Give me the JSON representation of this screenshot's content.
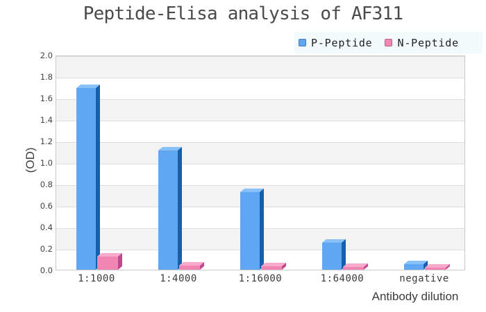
{
  "title": "Peptide-Elisa analysis of AF311",
  "legend": {
    "background": "#f2fafb"
  },
  "colors": {
    "band_gray": "#f3f3f3",
    "gridline": "#dedede",
    "plot_border": "#c9c9c9",
    "title_text": "#4a4a4a",
    "tick_text": "#3a3a3a"
  },
  "chart_data": {
    "type": "bar",
    "title": "Peptide-Elisa analysis of AF311",
    "categories": [
      "1:1000",
      "1:4000",
      "1:16000",
      "1:64000",
      "negative"
    ],
    "series": [
      {
        "name": "P-Peptide",
        "color": "#5fa7f2",
        "color_top": "#88c0f8",
        "color_side": "#1560ae",
        "values": [
          1.69,
          1.11,
          0.72,
          0.25,
          0.05
        ]
      },
      {
        "name": "N-Peptide",
        "color": "#f186b5",
        "color_top": "#f8a9cc",
        "color_side": "#c2488e",
        "values": [
          0.12,
          0.04,
          0.03,
          0.025,
          0.02
        ]
      }
    ],
    "xlabel": "Antibody dilution",
    "ylabel": "(OD)",
    "ylim": [
      0,
      2.0
    ],
    "yticks": [
      "0.0",
      "0.2",
      "0.4",
      "0.6",
      "0.8",
      "1.0",
      "1.2",
      "1.4",
      "1.6",
      "1.8",
      "2.0"
    ],
    "ytick_step": 0.2,
    "grid": true,
    "band_fill": true,
    "bar_style": "3d",
    "legend_position": "top-right"
  }
}
